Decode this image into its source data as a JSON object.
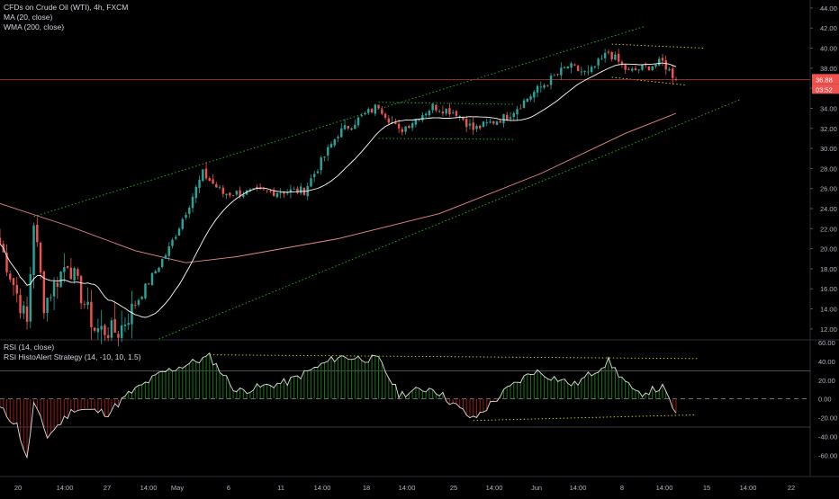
{
  "legend": {
    "symbol": "CFDs on Crude Oil (WTI), 4h, FXCM",
    "ma": "MA (20, close)",
    "wma": "WMA (200, close)",
    "rsi": "RSI (14, close)",
    "rsi_strategy": "RSI HistoAlert Strategy (14, -10, 10, 1.5)"
  },
  "price_badge": {
    "value": "36.88",
    "countdown": "03:52"
  },
  "colors": {
    "background": "#000000",
    "up": "#26a69a",
    "down": "#ef5350",
    "ma": "#ffffff",
    "wma": "#e88a8a",
    "trendline": "#1fbf1f",
    "wedge": "#d8d820",
    "price_line": "#c0392b",
    "hist_up": "#1a6b1a",
    "hist_down": "#8b1a1a"
  },
  "chart_data": [
    {
      "type": "candlestick",
      "price_axis_ticks": [
        "44.00",
        "42.00",
        "40.00",
        "38.00",
        "36.00",
        "34.00",
        "32.00",
        "30.00",
        "28.00",
        "26.00",
        "24.00",
        "22.00",
        "20.00",
        "18.00",
        "16.00",
        "14.00",
        "12.00"
      ],
      "ylim": [
        11.0,
        44.8
      ],
      "x_ticks": [
        "20",
        "14:00",
        "27",
        "14:00",
        "May",
        "6",
        "11",
        "14:00",
        "18",
        "14:00",
        "25",
        "14:00",
        "Jun",
        "14:00",
        "8",
        "14:00",
        "15",
        "14:00",
        "22"
      ],
      "last_price": 36.88,
      "key_points": [
        {
          "bar": 0,
          "price": 20.5
        },
        {
          "bar": 8,
          "price": 12.5
        },
        {
          "bar": 10,
          "price": 22.8
        },
        {
          "bar": 13,
          "price": 14.5
        },
        {
          "bar": 20,
          "price": 18.8
        },
        {
          "bar": 28,
          "price": 12.0
        },
        {
          "bar": 35,
          "price": 11.7
        },
        {
          "bar": 50,
          "price": 20.0
        },
        {
          "bar": 60,
          "price": 27.5
        },
        {
          "bar": 66,
          "price": 25.5
        },
        {
          "bar": 90,
          "price": 25.8
        },
        {
          "bar": 100,
          "price": 31.5
        },
        {
          "bar": 112,
          "price": 34.3
        },
        {
          "bar": 118,
          "price": 31.7
        },
        {
          "bar": 128,
          "price": 34.2
        },
        {
          "bar": 135,
          "price": 33.6
        },
        {
          "bar": 140,
          "price": 31.9
        },
        {
          "bar": 150,
          "price": 33.2
        },
        {
          "bar": 158,
          "price": 35.6
        },
        {
          "bar": 168,
          "price": 38.2
        },
        {
          "bar": 174,
          "price": 37.4
        },
        {
          "bar": 180,
          "price": 39.6
        },
        {
          "bar": 186,
          "price": 37.6
        },
        {
          "bar": 196,
          "price": 38.6
        },
        {
          "bar": 200,
          "price": 36.88
        }
      ]
    },
    {
      "type": "line",
      "name": "RSI (14, close)",
      "axis_ticks": [
        "60.00",
        "40.00",
        "20.00",
        "0.00",
        "-20.00",
        "-40.00",
        "-60.00"
      ],
      "ylim": [
        -76,
        62
      ],
      "levels": [
        30,
        0,
        -30
      ],
      "key_points": [
        {
          "bar": 0,
          "value": -10
        },
        {
          "bar": 5,
          "value": -28
        },
        {
          "bar": 8,
          "value": -65
        },
        {
          "bar": 10,
          "value": -5
        },
        {
          "bar": 14,
          "value": -40
        },
        {
          "bar": 22,
          "value": -10
        },
        {
          "bar": 32,
          "value": -15
        },
        {
          "bar": 38,
          "value": 5
        },
        {
          "bar": 48,
          "value": 28
        },
        {
          "bar": 62,
          "value": 45
        },
        {
          "bar": 70,
          "value": 8
        },
        {
          "bar": 85,
          "value": 18
        },
        {
          "bar": 100,
          "value": 45
        },
        {
          "bar": 112,
          "value": 42
        },
        {
          "bar": 118,
          "value": 5
        },
        {
          "bar": 128,
          "value": 12
        },
        {
          "bar": 140,
          "value": -22
        },
        {
          "bar": 150,
          "value": 10
        },
        {
          "bar": 158,
          "value": 30
        },
        {
          "bar": 170,
          "value": 15
        },
        {
          "bar": 180,
          "value": 40
        },
        {
          "bar": 188,
          "value": 5
        },
        {
          "bar": 196,
          "value": 12
        },
        {
          "bar": 200,
          "value": -15
        }
      ]
    }
  ]
}
